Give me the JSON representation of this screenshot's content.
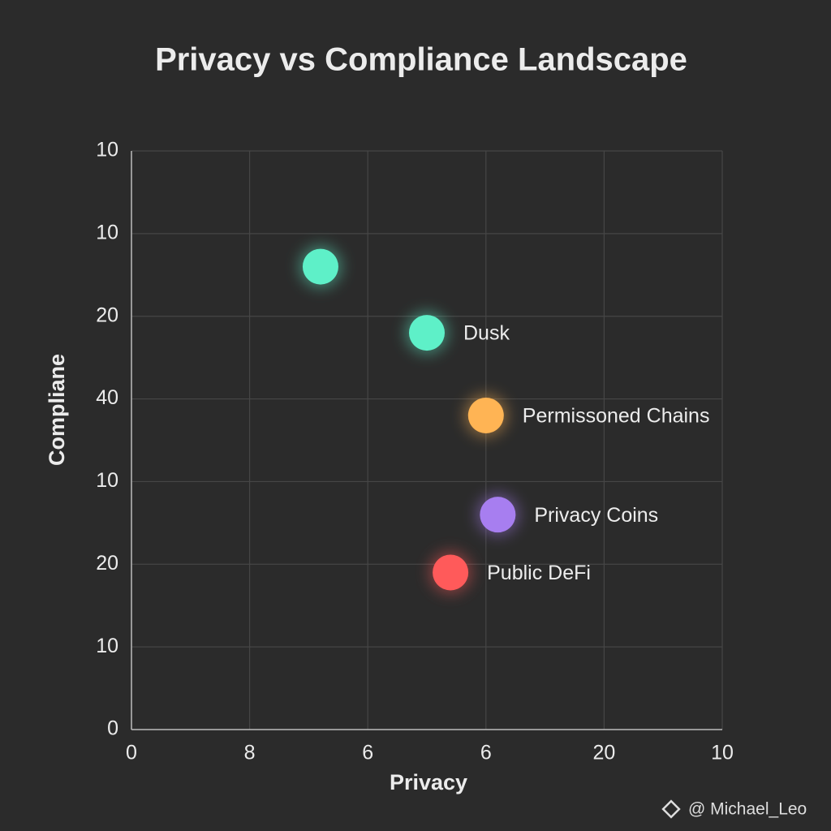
{
  "chart_data": {
    "type": "scatter",
    "title": "Privacy vs Compliance Landscape",
    "xlabel": "Privacy",
    "ylabel": "Compliane",
    "x": [
      1.6,
      2.5,
      3.0,
      3.1,
      2.7
    ],
    "values": [
      5.6,
      4.8,
      3.8,
      2.6,
      1.9
    ],
    "labels": [
      null,
      "Dusk",
      "Permissoned Chains",
      "Privacy Coins",
      "Public DeFi"
    ],
    "colors": [
      "#5ef0c8",
      "#5ef0c8",
      "#ffb454",
      "#a77ef0",
      "#ff5a5a"
    ],
    "xlim": [
      0,
      5
    ],
    "xticks": [
      0,
      {
        "value": 1,
        "label": "8"
      },
      {
        "value": 2,
        "label": "6"
      },
      {
        "value": 3,
        "label": "6"
      },
      {
        "value": 4,
        "label": "20"
      },
      {
        "value": 5,
        "label": "10"
      }
    ],
    "ylim": [
      0,
      7
    ],
    "yticks": [
      0,
      {
        "value": 1,
        "label": "10"
      },
      {
        "value": 2,
        "label": "20"
      },
      {
        "value": 3,
        "label": "10"
      },
      {
        "value": 4,
        "label": "40"
      },
      {
        "value": 5,
        "label": "20"
      },
      {
        "value": 6,
        "label": "10"
      },
      {
        "value": 7,
        "label": "10"
      }
    ],
    "grid": true
  },
  "watermark": "@ Michael_Leo"
}
